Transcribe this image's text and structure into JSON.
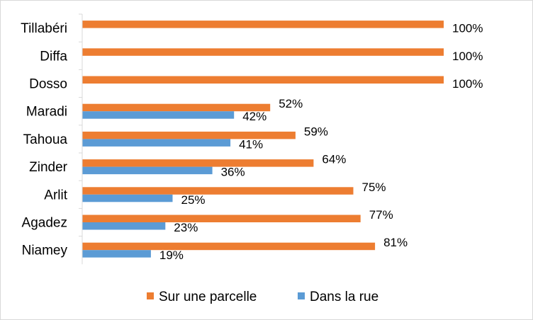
{
  "chart_data": {
    "type": "bar",
    "orientation": "horizontal",
    "categories": [
      "Tillabéri",
      "Diffa",
      "Dosso",
      "Maradi",
      "Tahoua",
      "Zinder",
      "Arlit",
      "Agadez",
      "Niamey"
    ],
    "series": [
      {
        "name": "Sur une parcelle",
        "color": "#ed7d31",
        "values": [
          100,
          100,
          100,
          52,
          59,
          64,
          75,
          77,
          81
        ],
        "labels": [
          "100%",
          "100%",
          "100%",
          "52%",
          "59%",
          "64%",
          "75%",
          "77%",
          "81%"
        ]
      },
      {
        "name": "Dans la rue",
        "color": "#5b9bd5",
        "values": [
          null,
          null,
          null,
          42,
          41,
          36,
          25,
          23,
          19
        ],
        "labels": [
          "",
          "",
          "",
          "42%",
          "41%",
          "36%",
          "25%",
          "23%",
          "19%"
        ]
      }
    ],
    "xlim": [
      0,
      100
    ],
    "grid": false,
    "legend": "bottom"
  }
}
